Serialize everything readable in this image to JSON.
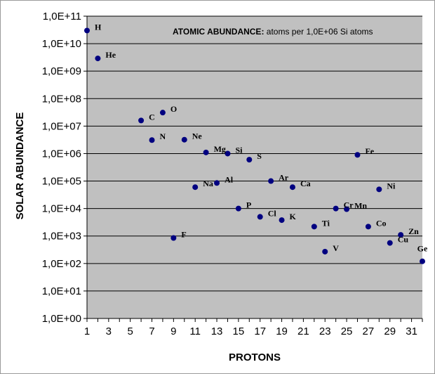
{
  "chart_data": {
    "type": "scatter",
    "title_bold": "ATOMIC ABUNDANCE:",
    "title_rest": " atoms per 1,0E+06 Si atoms",
    "xlabel": "PROTONS",
    "ylabel": "SOLAR ABUNDANCE",
    "xlim": [
      1,
      32
    ],
    "ylim_log10": [
      0,
      11
    ],
    "y_scale": "log",
    "x_ticks": [
      "1",
      "3",
      "5",
      "7",
      "9",
      "11",
      "13",
      "15",
      "17",
      "19",
      "21",
      "23",
      "25",
      "27",
      "29",
      "31"
    ],
    "y_ticks": [
      "1,0E+00",
      "1,0E+01",
      "1,0E+02",
      "1,0E+03",
      "1,0E+04",
      "1,0E+05",
      "1,0E+06",
      "1,0E+07",
      "1,0E+08",
      "1,0E+09",
      "1,0E+10",
      "1,0E+11"
    ],
    "grid": "horizontal",
    "plot_background": "#c0c0c0",
    "marker_color": "#000080",
    "points": [
      {
        "label": "H",
        "x": 1,
        "y": 30000000000.0
      },
      {
        "label": "He",
        "x": 2,
        "y": 2900000000.0
      },
      {
        "label": "C",
        "x": 6,
        "y": 16000000.0
      },
      {
        "label": "N",
        "x": 7,
        "y": 3100000.0
      },
      {
        "label": "O",
        "x": 8,
        "y": 31000000.0
      },
      {
        "label": "F",
        "x": 9,
        "y": 850
      },
      {
        "label": "Ne",
        "x": 10,
        "y": 3200000.0
      },
      {
        "label": "Na",
        "x": 11,
        "y": 60000.0
      },
      {
        "label": "Mg",
        "x": 12,
        "y": 1100000.0
      },
      {
        "label": "Al",
        "x": 13,
        "y": 85000.0
      },
      {
        "label": "Si",
        "x": 14,
        "y": 1000000.0
      },
      {
        "label": "P",
        "x": 15,
        "y": 10000.0
      },
      {
        "label": "S",
        "x": 16,
        "y": 600000.0
      },
      {
        "label": "Cl",
        "x": 17,
        "y": 5000.0
      },
      {
        "label": "Ar",
        "x": 18,
        "y": 100000.0
      },
      {
        "label": "K",
        "x": 19,
        "y": 3800.0
      },
      {
        "label": "Ca",
        "x": 20,
        "y": 60000.0
      },
      {
        "label": "Ti",
        "x": 22,
        "y": 2200.0
      },
      {
        "label": "V",
        "x": 23,
        "y": 270
      },
      {
        "label": "Cr",
        "x": 24,
        "y": 10000.0
      },
      {
        "label": "Mn",
        "x": 25,
        "y": 9500.0
      },
      {
        "label": "Fe",
        "x": 26,
        "y": 900000.0
      },
      {
        "label": "Co",
        "x": 27,
        "y": 2200.0
      },
      {
        "label": "Ni",
        "x": 28,
        "y": 50000.0
      },
      {
        "label": "Cu",
        "x": 29,
        "y": 560
      },
      {
        "label": "Zn",
        "x": 30,
        "y": 1100.0
      },
      {
        "label": "Ge",
        "x": 32,
        "y": 120
      }
    ]
  }
}
